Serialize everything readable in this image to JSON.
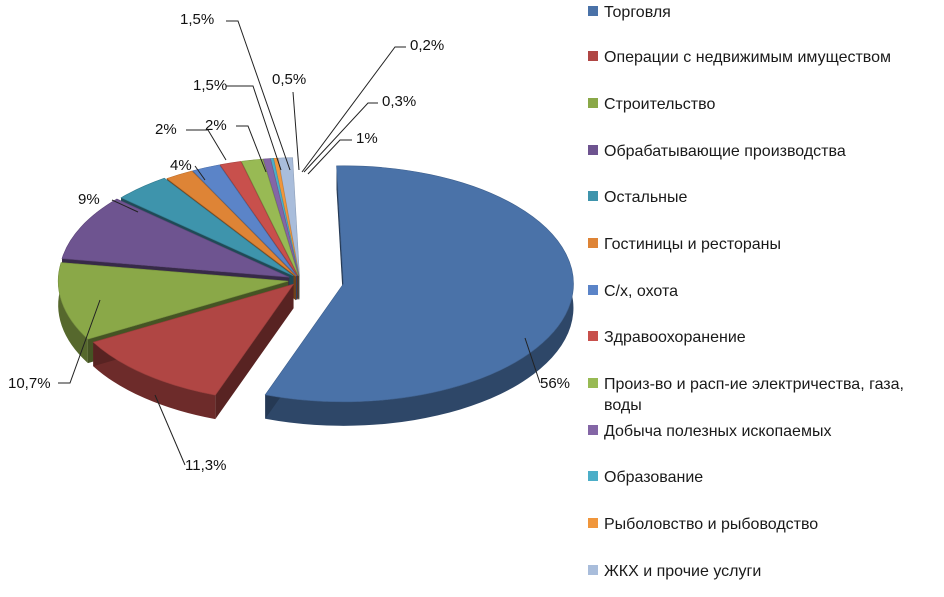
{
  "chart_data": {
    "type": "pie",
    "categories": [
      "Торговля",
      "Операции с недвижимым имуществом",
      "Строительство",
      "Обрабатывающие производства",
      "Остальные",
      "Гостиницы и рестораны",
      "С/х, охота",
      "Здравоохоранение",
      "Произ-во и расп-ие электричества, газа, воды",
      "Добыча полезных ископаемых",
      "Образование",
      "Рыболовство и рыбоводство",
      "ЖКХ и прочие услуги"
    ],
    "values": [
      56,
      11.3,
      10.7,
      9,
      4,
      2,
      2,
      1.5,
      1.5,
      0.5,
      0.2,
      0.3,
      1
    ],
    "value_labels": [
      "56%",
      "11,3%",
      "10,7%",
      "9%",
      "4%",
      "2%",
      "2%",
      "1,5%",
      "1,5%",
      "0,5%",
      "0,2%",
      "0,3%",
      "1%"
    ],
    "colors": [
      "#4a72a8",
      "#b04644",
      "#8aa848",
      "#6e5490",
      "#3e94ac",
      "#de8436",
      "#5b84c8",
      "#c8504c",
      "#98ba54",
      "#8466a6",
      "#4caec8",
      "#f0963c",
      "#a9bddb"
    ],
    "legend_position": "right",
    "title": ""
  }
}
